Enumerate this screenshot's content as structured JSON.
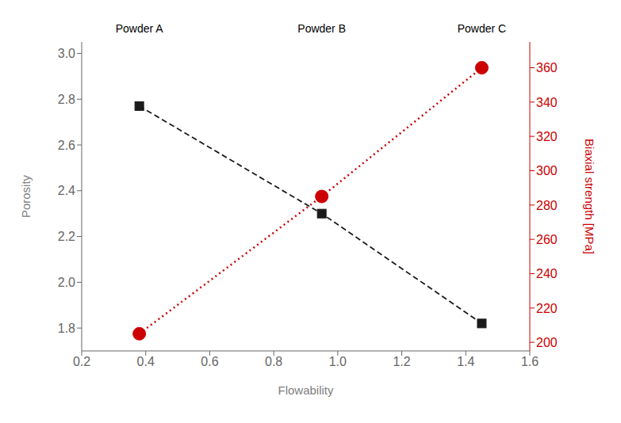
{
  "chart_data": {
    "type": "line",
    "xlabel": "Flowability",
    "ylabel": "Porosity",
    "y2label": "Biaxial strength [MPa]",
    "x": [
      0.38,
      0.95,
      1.45
    ],
    "series": [
      {
        "color": "#1a1a1a",
        "values": [
          2.77,
          2.3,
          1.82
        ],
        "marker": "square",
        "line_style": "dashed"
      },
      {
        "color": "#cc0000",
        "values": [
          205,
          285,
          360
        ],
        "marker": "circle",
        "line_style": "dotted",
        "axis": "y2"
      }
    ],
    "xlim": [
      0.2,
      1.6
    ],
    "xticks": [
      0.2,
      0.4,
      0.6,
      0.8,
      {
        "value": 1.0,
        "label": "1.0"
      },
      1.2,
      1.4,
      1.6
    ],
    "ylim": [
      1.7,
      3.05
    ],
    "yticks": [
      1.8,
      {
        "value": 2.0,
        "label": "2.0"
      },
      2.2,
      2.4,
      2.6,
      2.8,
      {
        "value": 3.0,
        "label": "3.0"
      }
    ],
    "y2lim": [
      195,
      375
    ],
    "y2ticks": [
      200,
      220,
      240,
      260,
      280,
      300,
      320,
      340,
      360
    ],
    "annotations": [
      {
        "text": "Powder A",
        "x": 0.38
      },
      {
        "text": "Powder B",
        "x": 0.95
      },
      {
        "text": "Powder C",
        "x": 1.45
      }
    ]
  }
}
